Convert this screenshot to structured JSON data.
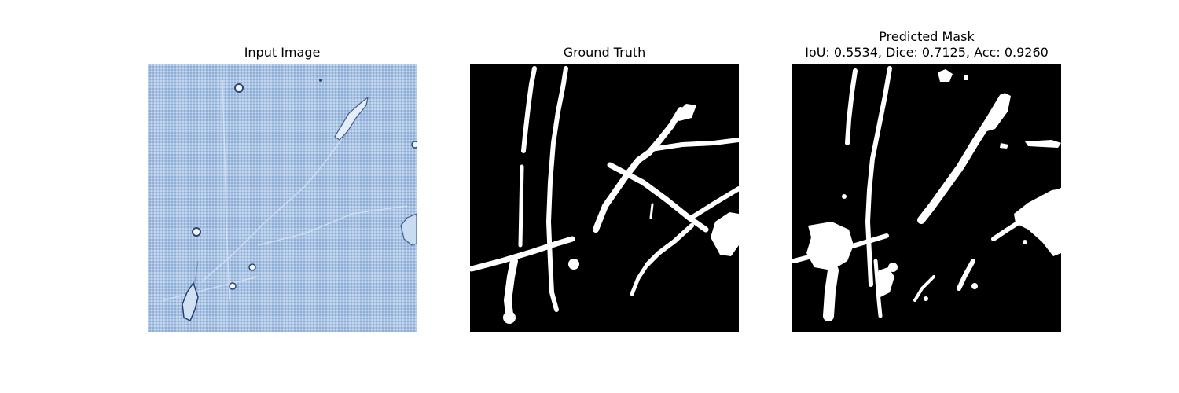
{
  "panels": [
    {
      "title": "Input Image",
      "subtitle": "",
      "image": "phase-contrast-cell-micrograph",
      "background_color": "#a9c3e3"
    },
    {
      "title": "Ground Truth",
      "subtitle": "",
      "image": "binary-segmentation-mask",
      "background_color": "#000000",
      "foreground_color": "#ffffff"
    },
    {
      "title": "Predicted Mask",
      "subtitle": "IoU: 0.5534, Dice: 0.7125, Acc: 0.9260",
      "image": "binary-segmentation-mask",
      "background_color": "#000000",
      "foreground_color": "#ffffff",
      "metrics": {
        "iou": 0.5534,
        "dice": 0.7125,
        "acc": 0.926
      }
    }
  ]
}
